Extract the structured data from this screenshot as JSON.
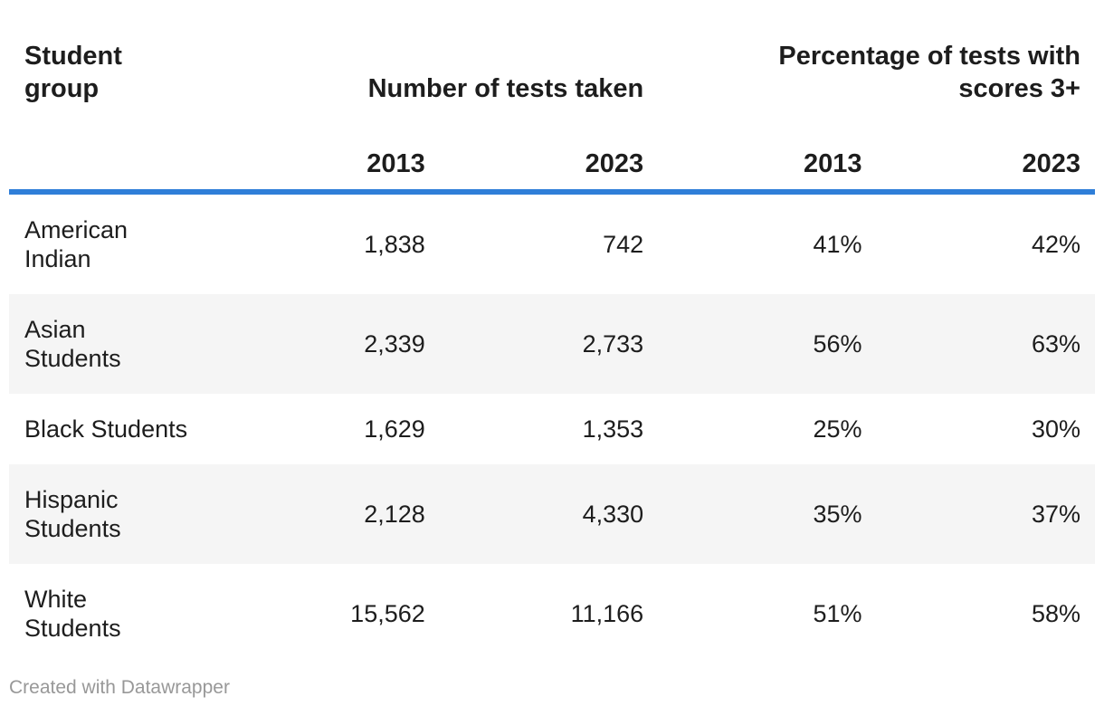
{
  "table": {
    "header": {
      "student_group": [
        "Student",
        "group"
      ],
      "tests_group": "Number of tests taken",
      "pct_group": [
        "Percentage of tests with",
        "scores 3+"
      ]
    },
    "year_headers": [
      "2013",
      "2023",
      "2013",
      "2023"
    ],
    "rows": [
      {
        "line1": "American",
        "line2": "Indian",
        "tests_2013": "1,838",
        "tests_2023": "742",
        "pct_2013": "41%",
        "pct_2023": "42%"
      },
      {
        "line1": "Asian",
        "line2": "Students",
        "tests_2013": "2,339",
        "tests_2023": "2,733",
        "pct_2013": "56%",
        "pct_2023": "63%"
      },
      {
        "line1": "Black Students",
        "line2": "",
        "tests_2013": "1,629",
        "tests_2023": "1,353",
        "pct_2013": "25%",
        "pct_2023": "30%"
      },
      {
        "line1": "Hispanic",
        "line2": "Students",
        "tests_2013": "2,128",
        "tests_2023": "4,330",
        "pct_2013": "35%",
        "pct_2023": "37%"
      },
      {
        "line1": "White",
        "line2": "Students",
        "tests_2013": "15,562",
        "tests_2023": "11,166",
        "pct_2013": "51%",
        "pct_2023": "58%"
      }
    ]
  },
  "footer": {
    "attribution": "Created with Datawrapper"
  },
  "colors": {
    "accent_rule": "#2f7ed8",
    "row_stripe": "#f5f5f5",
    "text": "#1d1d1d",
    "footer_text": "#989898"
  },
  "chart_data": {
    "type": "table",
    "title": "",
    "column_groups": [
      "Student group",
      "Number of tests taken",
      "Percentage of tests with scores 3+"
    ],
    "columns": [
      "Student group",
      "Number of tests taken 2013",
      "Number of tests taken 2023",
      "Percentage of tests with scores 3+ 2013",
      "Percentage of tests with scores 3+ 2023"
    ],
    "rows": [
      [
        "American Indian",
        1838,
        742,
        "41%",
        "42%"
      ],
      [
        "Asian Students",
        2339,
        2733,
        "56%",
        "63%"
      ],
      [
        "Black Students",
        1629,
        1353,
        "25%",
        "30%"
      ],
      [
        "Hispanic Students",
        2128,
        4330,
        "35%",
        "37%"
      ],
      [
        "White Students",
        15562,
        11166,
        "51%",
        "58%"
      ]
    ],
    "layout": {
      "zebra_striping": true,
      "striped_row_indices": [
        1,
        3
      ],
      "header_rule_color": "#2f7ed8",
      "numeric_alignment": "right"
    }
  }
}
